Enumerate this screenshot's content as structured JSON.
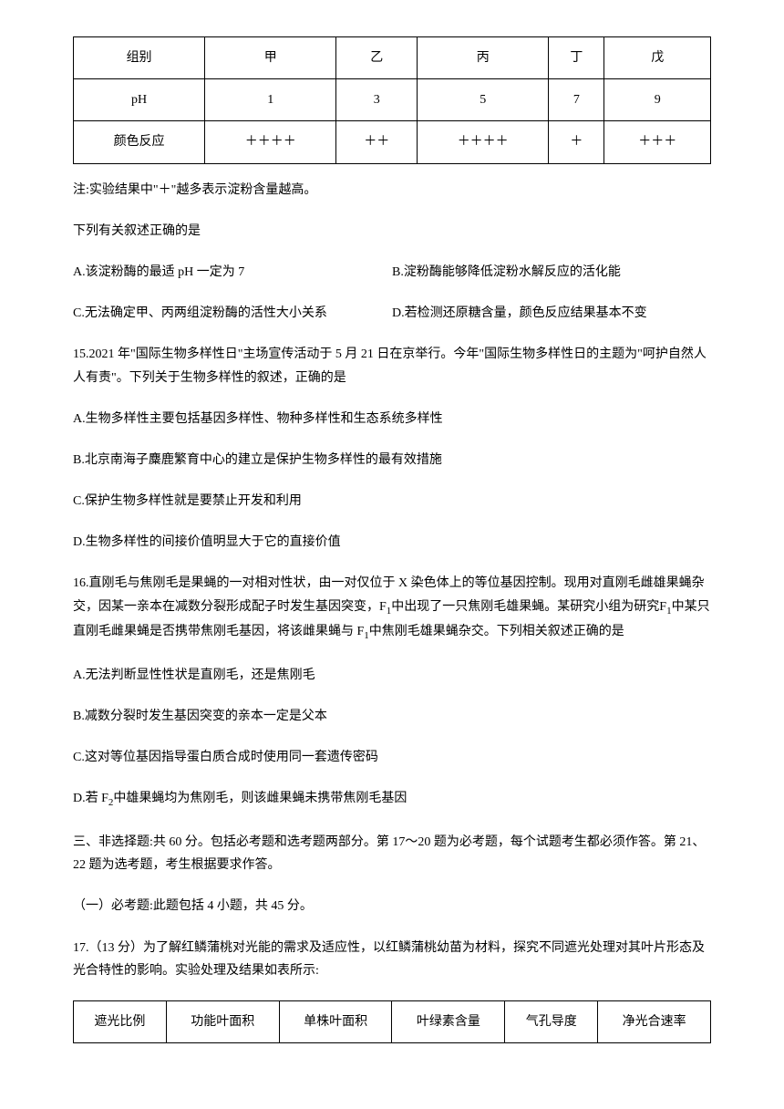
{
  "table1": {
    "headers": [
      "组别",
      "甲",
      "乙",
      "丙",
      "丁",
      "戊"
    ],
    "rows": [
      [
        "pH",
        "1",
        "3",
        "5",
        "7",
        "9"
      ],
      [
        "颜色反应",
        "＋＋＋＋",
        "＋＋",
        "＋＋＋＋",
        "＋",
        "＋＋＋"
      ]
    ],
    "col_widths": [
      "16.6%",
      "16.6%",
      "16.6%",
      "16.6%",
      "16.6%",
      "16.6%"
    ]
  },
  "note": "注:实验结果中\"＋\"越多表示淀粉含量越高。",
  "q14_stem": "下列有关叙述正确的是",
  "q14_a": "A.该淀粉酶的最适 pH 一定为 7",
  "q14_b": "B.淀粉酶能够降低淀粉水解反应的活化能",
  "q14_c": "C.无法确定甲、丙两组淀粉酶的活性大小关系",
  "q14_d": "D.若检测还原糖含量，颜色反应结果基本不变",
  "q15_stem": "15.2021 年\"国际生物多样性日\"主场宣传活动于 5 月 21 日在京举行。今年\"国际生物多样性日的主题为\"呵护自然人人有责\"。下列关于生物多样性的叙述，正确的是",
  "q15_a": "A.生物多样性主要包括基因多样性、物种多样性和生态系统多样性",
  "q15_b": "B.北京南海子麋鹿繁育中心的建立是保护生物多样性的最有效措施",
  "q15_c": "C.保护生物多样性就是要禁止开发和利用",
  "q15_d": "D.生物多样性的间接价值明显大于它的直接价值",
  "q16_stem_p1": "16.直刚毛与焦刚毛是果蝇的一对相对性状，由一对仅位于 X 染色体上的等位基因控制。现用对直刚毛雌雄果蝇杂交，因某一亲本在减数分裂形成配子时发生基因突变，F",
  "q16_stem_p2": "中出现了一只焦刚毛雄果蝇。某研究小组为研究F",
  "q16_stem_p3": "中某只直刚毛雌果蝇是否携带焦刚毛基因，将该雌果蝇与 F",
  "q16_stem_p4": "中焦刚毛雄果蝇杂交。下列相关叙述正确的是",
  "q16_a": "A.无法判断显性性状是直刚毛，还是焦刚毛",
  "q16_b": "B.减数分裂时发生基因突变的亲本一定是父本",
  "q16_c": "C.这对等位基因指导蛋白质合成时使用同一套遗传密码",
  "q16_d_p1": "D.若 F",
  "q16_d_p2": "中雄果蝇均为焦刚毛，则该雌果蝇未携带焦刚毛基因",
  "section3": "三、非选择题:共 60 分。包括必考题和选考题两部分。第 17～20 题为必考题，每个试题考生都必须作答。第 21、22 题为选考题，考生根据要求作答。",
  "section3_1": "（一）必考题:此题包括 4 小题，共 45 分。",
  "q17_stem": "17.（13 分）为了解红鳞蒲桃对光能的需求及适应性，以红鳞蒲桃幼苗为材料，探究不同遮光处理对其叶片形态及光合特性的影响。实验处理及结果如表所示:",
  "table2": {
    "headers": [
      "遮光比例",
      "功能叶面积",
      "单株叶面积",
      "叶绿素含量",
      "气孔导度",
      "净光合速率"
    ]
  },
  "sub1": "1",
  "sub2": "2"
}
